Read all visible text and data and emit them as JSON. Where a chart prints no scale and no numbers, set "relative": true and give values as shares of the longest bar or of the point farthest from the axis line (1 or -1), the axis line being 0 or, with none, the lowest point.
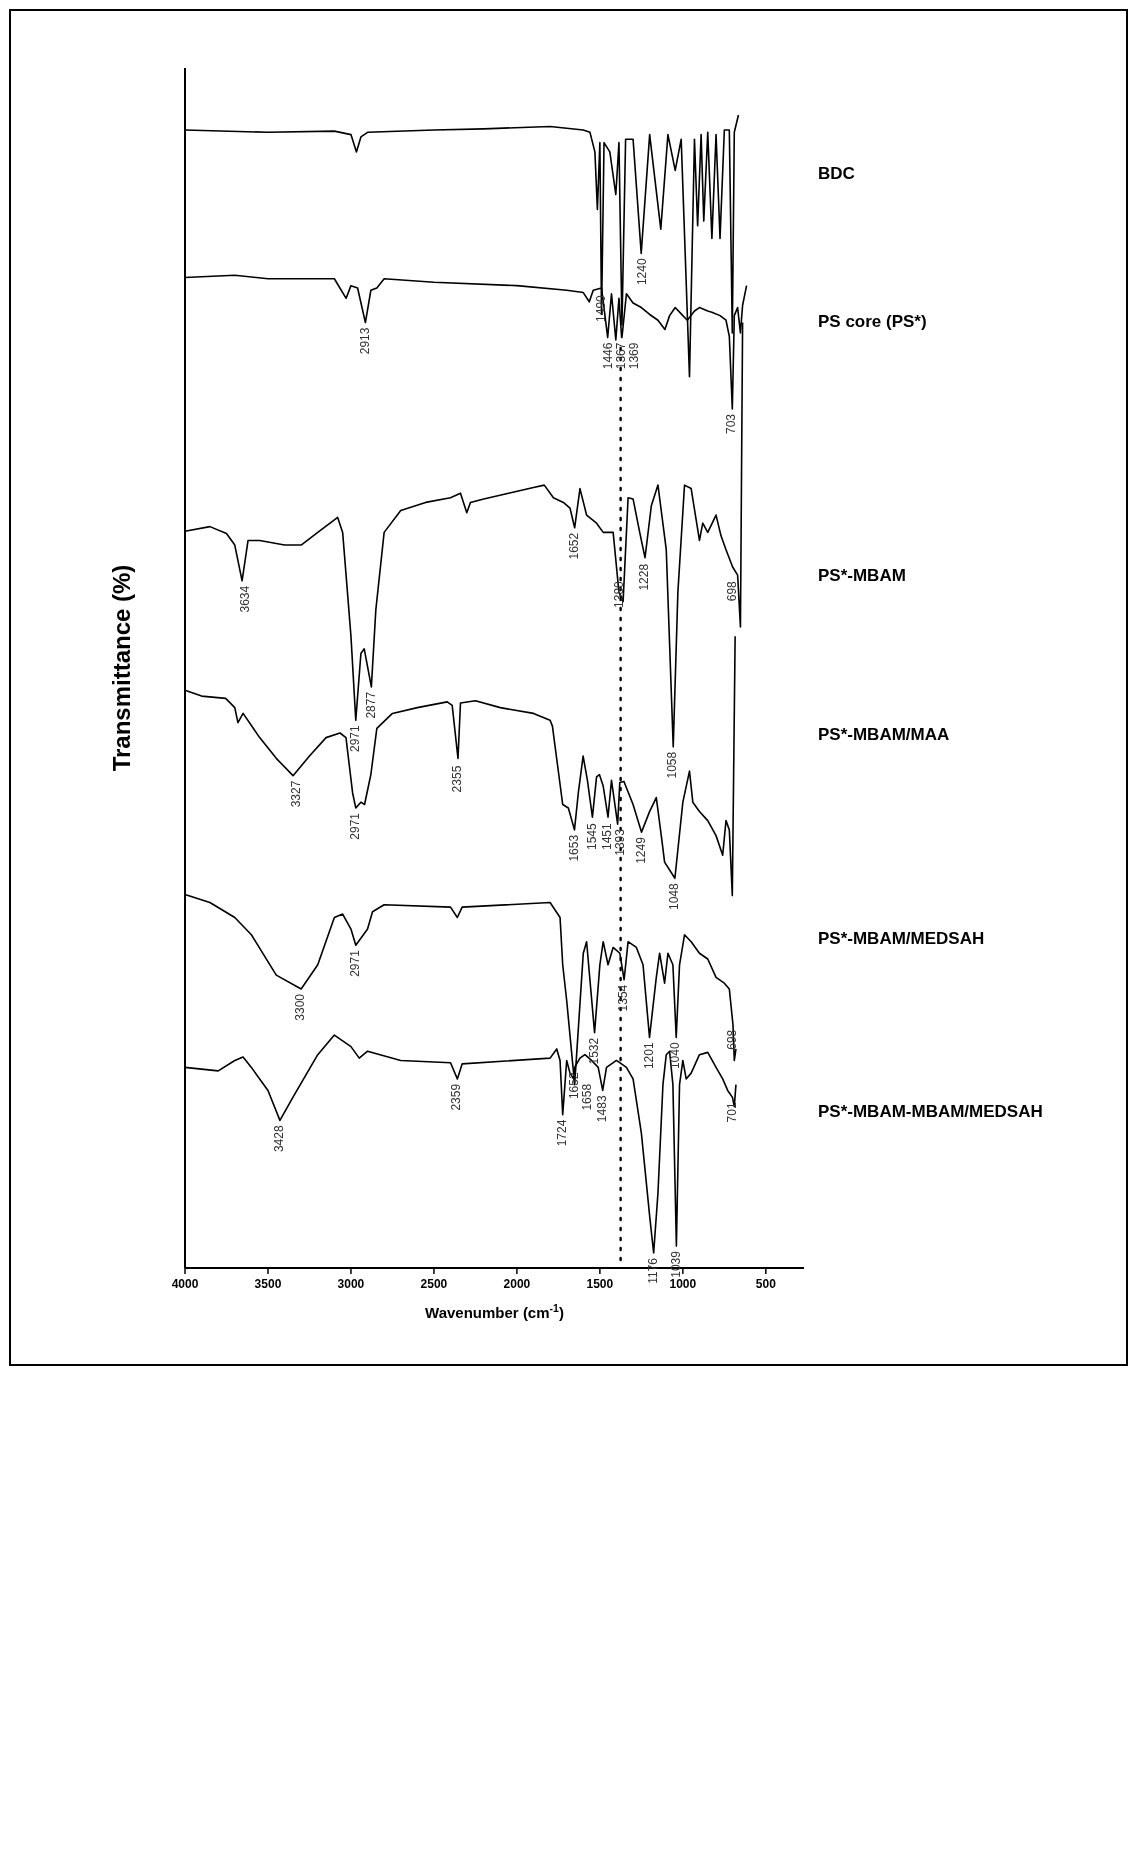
{
  "chart_data": {
    "type": "line",
    "relative": true,
    "xlabel": "Wavenumber (cm$^{-1}$)",
    "ylabel": "Transmittance (%)",
    "xlim": [
      4000,
      270
    ],
    "xticks": [
      4000,
      3500,
      3000,
      2500,
      2000,
      1500,
      1000,
      500
    ],
    "tick_labels": "x",
    "series": [
      {
        "name": "BDC",
        "color": "#000000",
        "x": [
          4000,
          3500,
          3100,
          3000,
          2967,
          2940,
          2900,
          2500,
          2200,
          1800,
          1600,
          1560,
          1530,
          1515,
          1500,
          1490,
          1475,
          1440,
          1404,
          1385,
          1367,
          1345,
          1300,
          1251,
          1200,
          1133,
          1090,
          1046,
          1010,
          960,
          930,
          911,
          890,
          874,
          850,
          825,
          800,
          776,
          750,
          720,
          702,
          690,
          665
        ],
        "values": [
          0.987,
          0.985,
          0.986,
          0.983,
          0.968,
          0.981,
          0.985,
          0.987,
          0.988,
          0.99,
          0.987,
          0.985,
          0.968,
          0.918,
          0.976,
          0.827,
          0.976,
          0.968,
          0.931,
          0.976,
          0.818,
          0.979,
          0.979,
          0.88,
          0.983,
          0.901,
          0.983,
          0.952,
          0.979,
          0.773,
          0.979,
          0.904,
          0.983,
          0.908,
          0.985,
          0.893,
          0.983,
          0.893,
          0.987,
          0.987,
          0.811,
          0.985,
          1
        ]
      },
      {
        "name": "PS core (PS*)",
        "color": "#000000",
        "x": [
          4000,
          3700,
          3500,
          3100,
          3029,
          3000,
          2960,
          2913,
          2880,
          2844,
          2800,
          2500,
          2000,
          1700,
          1600,
          1564,
          1540,
          1490,
          1453,
          1430,
          1404,
          1385,
          1369,
          1367,
          1340,
          1300,
          1250,
          1200,
          1150,
          1108,
          1080,
          1046,
          1000,
          973,
          930,
          900,
          850,
          825,
          776,
          740,
          720,
          702,
          690,
          670,
          653,
          640,
          616
        ],
        "values": [
          0.859,
          0.861,
          0.858,
          0.858,
          0.841,
          0.852,
          0.85,
          0.82,
          0.848,
          0.85,
          0.858,
          0.855,
          0.852,
          0.848,
          0.846,
          0.838,
          0.848,
          0.85,
          0.807,
          0.845,
          0.805,
          0.841,
          0.807,
          0.807,
          0.845,
          0.837,
          0.833,
          0.827,
          0.822,
          0.814,
          0.826,
          0.833,
          0.826,
          0.822,
          0.83,
          0.833,
          0.83,
          0.829,
          0.826,
          0.822,
          0.808,
          0.745,
          0.826,
          0.833,
          0.811,
          0.835,
          0.852
        ]
      },
      {
        "name": "PS*-MBAM",
        "color": "#000000",
        "x": [
          4000,
          3850,
          3750,
          3700,
          3656,
          3620,
          3550,
          3400,
          3300,
          3200,
          3080,
          3050,
          3000,
          2971,
          2940,
          2920,
          2877,
          2850,
          2800,
          2700,
          2550,
          2400,
          2340,
          2302,
          2280,
          2200,
          2050,
          1900,
          1835,
          1780,
          1720,
          1680,
          1652,
          1620,
          1580,
          1520,
          1480,
          1420,
          1385,
          1360,
          1330,
          1300,
          1260,
          1228,
          1190,
          1150,
          1100,
          1058,
          1030,
          990,
          950,
          900,
          880,
          850,
          800,
          770,
          740,
          700,
          670,
          653,
          640
        ],
        "values": [
          0.639,
          0.643,
          0.637,
          0.627,
          0.596,
          0.631,
          0.631,
          0.627,
          0.627,
          0.638,
          0.651,
          0.638,
          0.548,
          0.475,
          0.533,
          0.537,
          0.504,
          0.571,
          0.638,
          0.657,
          0.664,
          0.668,
          0.672,
          0.655,
          0.664,
          0.667,
          0.672,
          0.677,
          0.679,
          0.668,
          0.664,
          0.659,
          0.642,
          0.676,
          0.653,
          0.646,
          0.638,
          0.638,
          0.586,
          0.578,
          0.668,
          0.667,
          0.638,
          0.616,
          0.661,
          0.679,
          0.623,
          0.452,
          0.586,
          0.679,
          0.676,
          0.631,
          0.646,
          0.638,
          0.653,
          0.635,
          0.623,
          0.608,
          0.601,
          0.556,
          0.82
        ]
      },
      {
        "name": "PS*-MBAM/MAA",
        "color": "#000000",
        "x": [
          4000,
          3900,
          3755,
          3700,
          3681,
          3650,
          3550,
          3450,
          3349,
          3250,
          3150,
          3066,
          3030,
          2990,
          2971,
          2940,
          2918,
          2880,
          2844,
          2750,
          2600,
          2420,
          2390,
          2355,
          2340,
          2250,
          2100,
          1900,
          1800,
          1786,
          1724,
          1690,
          1653,
          1630,
          1601,
          1575,
          1545,
          1520,
          1503,
          1480,
          1451,
          1430,
          1393,
          1380,
          1355,
          1300,
          1249,
          1200,
          1160,
          1130,
          1110,
          1048,
          1000,
          960,
          940,
          900,
          850,
          800,
          760,
          740,
          720,
          702,
          685
        ],
        "values": [
          0.501,
          0.496,
          0.494,
          0.486,
          0.473,
          0.481,
          0.46,
          0.442,
          0.427,
          0.444,
          0.46,
          0.464,
          0.46,
          0.412,
          0.399,
          0.404,
          0.402,
          0.428,
          0.468,
          0.481,
          0.486,
          0.491,
          0.488,
          0.442,
          0.49,
          0.492,
          0.486,
          0.481,
          0.475,
          0.47,
          0.402,
          0.399,
          0.38,
          0.412,
          0.444,
          0.423,
          0.391,
          0.426,
          0.428,
          0.418,
          0.391,
          0.423,
          0.385,
          0.421,
          0.422,
          0.402,
          0.378,
          0.396,
          0.408,
          0.375,
          0.352,
          0.338,
          0.404,
          0.431,
          0.404,
          0.396,
          0.388,
          0.375,
          0.358,
          0.388,
          0.38,
          0.323,
          0.548
        ]
      },
      {
        "name": "PS*-MBAM/MEDSAH",
        "color": "#000000",
        "x": [
          4000,
          3850,
          3700,
          3600,
          3450,
          3300,
          3200,
          3100,
          3050,
          3000,
          2971,
          2900,
          2870,
          2800,
          2400,
          2359,
          2330,
          1800,
          1740,
          1724,
          1700,
          1652,
          1600,
          1580,
          1532,
          1500,
          1480,
          1451,
          1420,
          1380,
          1354,
          1330,
          1280,
          1240,
          1201,
          1160,
          1140,
          1110,
          1090,
          1060,
          1040,
          1020,
          990,
          950,
          900,
          850,
          800,
          750,
          720,
          698,
          690,
          680
        ],
        "values": [
          0.324,
          0.317,
          0.304,
          0.289,
          0.254,
          0.242,
          0.263,
          0.304,
          0.307,
          0.294,
          0.28,
          0.294,
          0.309,
          0.315,
          0.313,
          0.304,
          0.313,
          0.317,
          0.304,
          0.263,
          0.232,
          0.159,
          0.273,
          0.283,
          0.204,
          0.263,
          0.283,
          0.263,
          0.278,
          0.273,
          0.25,
          0.283,
          0.278,
          0.263,
          0.2,
          0.252,
          0.273,
          0.247,
          0.273,
          0.263,
          0.2,
          0.263,
          0.289,
          0.283,
          0.273,
          0.268,
          0.252,
          0.247,
          0.242,
          0.211,
          0.18,
          0.19
        ]
      },
      {
        "name": "PS*-MBAM-MBAM/MEDSAH",
        "color": "#000000",
        "x": [
          4000,
          3800,
          3700,
          3650,
          3600,
          3500,
          3428,
          3350,
          3200,
          3100,
          3000,
          2950,
          2900,
          2700,
          2400,
          2359,
          2330,
          1800,
          1760,
          1740,
          1724,
          1700,
          1680,
          1658,
          1652,
          1620,
          1590,
          1550,
          1510,
          1483,
          1460,
          1400,
          1340,
          1300,
          1250,
          1200,
          1176,
          1150,
          1120,
          1100,
          1080,
          1060,
          1039,
          1020,
          1000,
          980,
          950,
          900,
          850,
          800,
          760,
          730,
          701,
          690,
          680
        ],
        "values": [
          0.174,
          0.171,
          0.18,
          0.183,
          0.174,
          0.154,
          0.128,
          0.148,
          0.185,
          0.202,
          0.192,
          0.182,
          0.188,
          0.18,
          0.178,
          0.164,
          0.177,
          0.182,
          0.19,
          0.18,
          0.133,
          0.18,
          0.169,
          0.164,
          0.174,
          0.182,
          0.185,
          0.18,
          0.174,
          0.154,
          0.174,
          0.18,
          0.174,
          0.164,
          0.117,
          0.045,
          0.013,
          0.065,
          0.159,
          0.185,
          0.188,
          0.159,
          0.019,
          0.159,
          0.18,
          0.164,
          0.169,
          0.185,
          0.187,
          0.174,
          0.164,
          0.154,
          0.148,
          0.14,
          0.159
        ]
      }
    ],
    "ref_lines": [
      {
        "axis": "x",
        "value": 1375,
        "line_style": "dotted"
      }
    ],
    "annotations": [
      {
        "text": "1240",
        "x": 1240,
        "y": 0.88
      },
      {
        "text": "1490",
        "x": 1490,
        "y": 0.848
      },
      {
        "text": "2913",
        "x": 2913,
        "y": 0.82
      },
      {
        "text": "1446",
        "x": 1446,
        "y": 0.807
      },
      {
        "text": "1367",
        "x": 1367,
        "y": 0.807
      },
      {
        "text": "1369",
        "x": 1369,
        "y": 0.807
      },
      {
        "text": "703",
        "x": 703,
        "y": 0.745
      },
      {
        "text": "3634",
        "x": 3634,
        "y": 0.596
      },
      {
        "text": "1652",
        "x": 1652,
        "y": 0.642
      },
      {
        "text": "1380",
        "x": 1380,
        "y": 0.6
      },
      {
        "text": "1228",
        "x": 1228,
        "y": 0.615
      },
      {
        "text": "698",
        "x": 698,
        "y": 0.6
      },
      {
        "text": "2971",
        "x": 2971,
        "y": 0.475
      },
      {
        "text": "2877",
        "x": 2877,
        "y": 0.504
      },
      {
        "text": "1058",
        "x": 1058,
        "y": 0.452
      },
      {
        "text": "3327",
        "x": 3327,
        "y": 0.427
      },
      {
        "text": "2971",
        "x": 2971,
        "y": 0.399
      },
      {
        "text": "2355",
        "x": 2355,
        "y": 0.44
      },
      {
        "text": "1653",
        "x": 1653,
        "y": 0.38
      },
      {
        "text": "1545",
        "x": 1545,
        "y": 0.39
      },
      {
        "text": "1451",
        "x": 1451,
        "y": 0.39
      },
      {
        "text": "1393",
        "x": 1393,
        "y": 0.385
      },
      {
        "text": "1249",
        "x": 1249,
        "y": 0.378
      },
      {
        "text": "1048",
        "x": 1048,
        "y": 0.338
      },
      {
        "text": "3300",
        "x": 3300,
        "y": 0.242
      },
      {
        "text": "2971",
        "x": 2971,
        "y": 0.28
      },
      {
        "text": "1532",
        "x": 1532,
        "y": 0.204
      },
      {
        "text": "1354",
        "x": 1354,
        "y": 0.25
      },
      {
        "text": "1201",
        "x": 1201,
        "y": 0.2
      },
      {
        "text": "1040",
        "x": 1040,
        "y": 0.2
      },
      {
        "text": "698",
        "x": 698,
        "y": 0.211
      },
      {
        "text": "3428",
        "x": 3428,
        "y": 0.128
      },
      {
        "text": "2359",
        "x": 2359,
        "y": 0.164
      },
      {
        "text": "1724",
        "x": 1724,
        "y": 0.133
      },
      {
        "text": "1652",
        "x": 1652,
        "y": 0.174
      },
      {
        "text": "1658",
        "x": 1658,
        "y": 0.164
      },
      {
        "text": "1483",
        "x": 1483,
        "y": 0.154
      },
      {
        "text": "1176",
        "x": 1176,
        "y": 0.013
      },
      {
        "text": "1039",
        "x": 1039,
        "y": 0.019
      },
      {
        "text": "701",
        "x": 701,
        "y": 0.148
      }
    ]
  }
}
